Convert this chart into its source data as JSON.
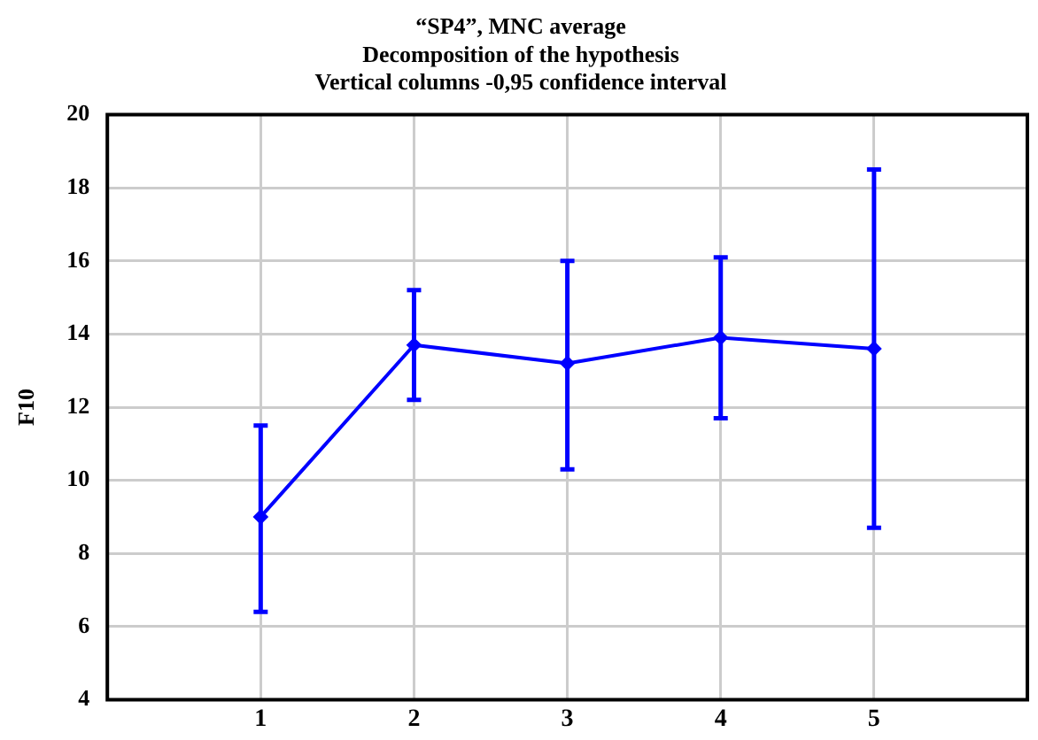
{
  "chart_data": {
    "type": "line",
    "title": [
      "“SP4”, MNC average",
      "Decomposition of the hypothesis",
      "Vertical columns -0,95 confidence interval"
    ],
    "ylabel": "F10",
    "x": [
      1,
      2,
      3,
      4,
      5
    ],
    "xlim": [
      0,
      6
    ],
    "xticks": [
      1,
      2,
      3,
      4,
      5
    ],
    "ylim": [
      4,
      20
    ],
    "yticks": [
      4,
      6,
      8,
      10,
      12,
      14,
      16,
      18,
      20
    ],
    "series": [
      {
        "color": "#0000ff",
        "values": [
          9.0,
          13.7,
          13.2,
          13.9,
          13.6
        ],
        "errors": [
          [
            6.4,
            11.5
          ],
          [
            12.2,
            15.2
          ],
          [
            10.3,
            16.0
          ],
          [
            11.7,
            16.1
          ],
          [
            8.7,
            18.5
          ]
        ]
      }
    ],
    "grid": true,
    "marker": "diamond",
    "line_style": "solid",
    "legend": false
  }
}
